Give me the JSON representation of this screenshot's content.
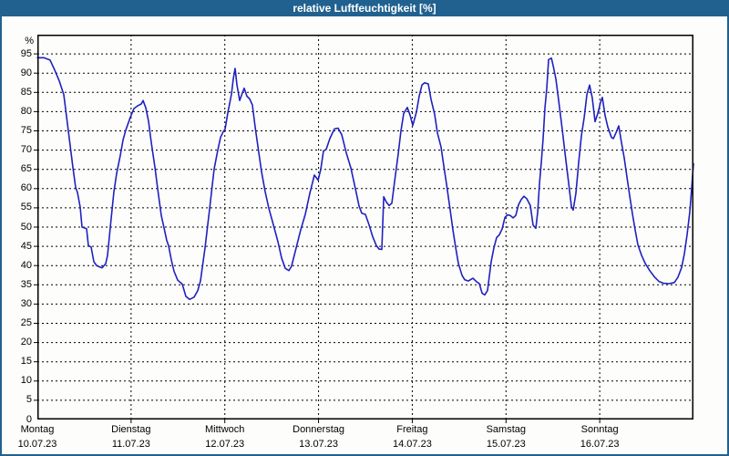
{
  "window": {
    "title": "relative Luftfeuchtigkeit [%]"
  },
  "colors": {
    "titlebar": "#20618f",
    "window_border": "#20618f",
    "background": "#fdfefb",
    "grid": "#000000",
    "line": "#2020c0",
    "title_text": "#ffffff",
    "axis_text": "#000000"
  },
  "chart_data": {
    "type": "line",
    "title": "relative Luftfeuchtigkeit [%]",
    "ylabel": "%",
    "ylim": [
      0,
      100
    ],
    "yticks": [
      0,
      5,
      10,
      15,
      20,
      25,
      30,
      35,
      40,
      45,
      50,
      55,
      60,
      65,
      70,
      75,
      80,
      85,
      90,
      95
    ],
    "xlim_days": [
      0,
      7
    ],
    "grid": "dashed",
    "legend": "none",
    "x_days": [
      {
        "name": "Montag",
        "date": "10.07.23"
      },
      {
        "name": "Dienstag",
        "date": "11.07.23"
      },
      {
        "name": "Mittwoch",
        "date": "12.07.23"
      },
      {
        "name": "Donnerstag",
        "date": "13.07.23"
      },
      {
        "name": "Freitag",
        "date": "14.07.23"
      },
      {
        "name": "Samstag",
        "date": "15.07.23"
      },
      {
        "name": "Sonntag",
        "date": "16.07.23"
      }
    ],
    "series": [
      {
        "name": "relative Luftfeuchtigkeit",
        "color": "#2020c0",
        "points": [
          [
            0,
            94
          ],
          [
            0.068,
            94
          ],
          [
            0.136,
            93.4
          ],
          [
            0.185,
            90.8
          ],
          [
            0.233,
            88
          ],
          [
            0.282,
            84.4
          ],
          [
            0.331,
            75
          ],
          [
            0.379,
            65.5
          ],
          [
            0.408,
            60.3
          ],
          [
            0.428,
            59
          ],
          [
            0.457,
            55.2
          ],
          [
            0.476,
            50
          ],
          [
            0.525,
            49.6
          ],
          [
            0.544,
            45.2
          ],
          [
            0.574,
            44.8
          ],
          [
            0.603,
            41
          ],
          [
            0.632,
            40
          ],
          [
            0.69,
            39.4
          ],
          [
            0.729,
            40.5
          ],
          [
            0.749,
            42.6
          ],
          [
            0.787,
            52
          ],
          [
            0.817,
            59.2
          ],
          [
            0.846,
            63.9
          ],
          [
            0.885,
            68.6
          ],
          [
            0.914,
            72.6
          ],
          [
            0.943,
            75.2
          ],
          [
            0.992,
            78.5
          ],
          [
            1.031,
            80.8
          ],
          [
            1.069,
            81.5
          ],
          [
            1.108,
            82
          ],
          [
            1.128,
            82.9
          ],
          [
            1.157,
            81
          ],
          [
            1.186,
            77.5
          ],
          [
            1.215,
            72
          ],
          [
            1.254,
            65.6
          ],
          [
            1.283,
            60
          ],
          [
            1.322,
            53
          ],
          [
            1.351,
            49.8
          ],
          [
            1.381,
            46.5
          ],
          [
            1.4,
            45.2
          ],
          [
            1.429,
            41.5
          ],
          [
            1.458,
            38.5
          ],
          [
            1.497,
            36.2
          ],
          [
            1.546,
            35.2
          ],
          [
            1.585,
            32
          ],
          [
            1.624,
            31.2
          ],
          [
            1.672,
            31.8
          ],
          [
            1.711,
            33.5
          ],
          [
            1.74,
            36
          ],
          [
            1.789,
            44.6
          ],
          [
            1.838,
            54.9
          ],
          [
            1.886,
            65.1
          ],
          [
            1.925,
            70
          ],
          [
            1.954,
            73.3
          ],
          [
            1.983,
            74.8
          ],
          [
            2.003,
            75.4
          ],
          [
            2.032,
            79.7
          ],
          [
            2.071,
            84.5
          ],
          [
            2.09,
            88.5
          ],
          [
            2.11,
            91.2
          ],
          [
            2.129,
            87
          ],
          [
            2.158,
            82.9
          ],
          [
            2.187,
            84.8
          ],
          [
            2.207,
            86.1
          ],
          [
            2.236,
            84
          ],
          [
            2.265,
            83.3
          ],
          [
            2.294,
            81.7
          ],
          [
            2.323,
            76.2
          ],
          [
            2.362,
            69.5
          ],
          [
            2.392,
            64.4
          ],
          [
            2.43,
            59.3
          ],
          [
            2.469,
            54.9
          ],
          [
            2.518,
            50.6
          ],
          [
            2.567,
            46.2
          ],
          [
            2.606,
            42
          ],
          [
            2.644,
            39.3
          ],
          [
            2.683,
            38.7
          ],
          [
            2.712,
            39.8
          ],
          [
            2.761,
            44.6
          ],
          [
            2.81,
            49.3
          ],
          [
            2.858,
            53.3
          ],
          [
            2.907,
            58.8
          ],
          [
            2.956,
            63.5
          ],
          [
            2.995,
            62.2
          ],
          [
            3.024,
            65
          ],
          [
            3.053,
            69.8
          ],
          [
            3.082,
            70.2
          ],
          [
            3.121,
            73
          ],
          [
            3.169,
            75.5
          ],
          [
            3.208,
            75.7
          ],
          [
            3.247,
            74
          ],
          [
            3.296,
            69.3
          ],
          [
            3.345,
            65.3
          ],
          [
            3.393,
            60
          ],
          [
            3.432,
            55.5
          ],
          [
            3.461,
            53.6
          ],
          [
            3.5,
            53.3
          ],
          [
            3.539,
            50.6
          ],
          [
            3.578,
            47.5
          ],
          [
            3.617,
            45.2
          ],
          [
            3.646,
            44.3
          ],
          [
            3.675,
            44.2
          ],
          [
            3.695,
            57.9
          ],
          [
            3.724,
            56.5
          ],
          [
            3.753,
            55.6
          ],
          [
            3.782,
            56.2
          ],
          [
            3.811,
            61.8
          ],
          [
            3.85,
            69
          ],
          [
            3.879,
            75
          ],
          [
            3.908,
            79.5
          ],
          [
            3.947,
            81.1
          ],
          [
            3.977,
            79
          ],
          [
            4.006,
            76.4
          ],
          [
            4.045,
            80
          ],
          [
            4.074,
            84
          ],
          [
            4.103,
            86.9
          ],
          [
            4.132,
            87.5
          ],
          [
            4.171,
            87.2
          ],
          [
            4.2,
            83.2
          ],
          [
            4.239,
            79.3
          ],
          [
            4.268,
            74.5
          ],
          [
            4.307,
            70.8
          ],
          [
            4.336,
            65.9
          ],
          [
            4.365,
            61.2
          ],
          [
            4.404,
            54.5
          ],
          [
            4.433,
            49.3
          ],
          [
            4.463,
            44.6
          ],
          [
            4.492,
            40.6
          ],
          [
            4.531,
            37.5
          ],
          [
            4.56,
            36.3
          ],
          [
            4.599,
            36
          ],
          [
            4.647,
            36.7
          ],
          [
            4.686,
            35.8
          ],
          [
            4.715,
            35.3
          ],
          [
            4.745,
            32.8
          ],
          [
            4.774,
            32.4
          ],
          [
            4.803,
            33.5
          ],
          [
            4.842,
            41
          ],
          [
            4.871,
            44.6
          ],
          [
            4.9,
            47.3
          ],
          [
            4.929,
            48
          ],
          [
            4.958,
            49.5
          ],
          [
            4.988,
            52.5
          ],
          [
            5.017,
            53.2
          ],
          [
            5.046,
            53
          ],
          [
            5.075,
            52.4
          ],
          [
            5.104,
            53
          ],
          [
            5.133,
            55.8
          ],
          [
            5.163,
            57.2
          ],
          [
            5.192,
            58
          ],
          [
            5.221,
            57.4
          ],
          [
            5.26,
            55.6
          ],
          [
            5.289,
            50.5
          ],
          [
            5.318,
            49.7
          ],
          [
            5.338,
            54
          ],
          [
            5.357,
            61.2
          ],
          [
            5.377,
            67
          ],
          [
            5.396,
            73
          ],
          [
            5.415,
            80.9
          ],
          [
            5.435,
            86
          ],
          [
            5.454,
            93.5
          ],
          [
            5.484,
            93.9
          ],
          [
            5.503,
            92
          ],
          [
            5.532,
            88.5
          ],
          [
            5.561,
            83
          ],
          [
            5.6,
            75.4
          ],
          [
            5.63,
            69.1
          ],
          [
            5.668,
            61.5
          ],
          [
            5.698,
            55.3
          ],
          [
            5.717,
            54.4
          ],
          [
            5.746,
            58.8
          ],
          [
            5.775,
            66.7
          ],
          [
            5.804,
            73.7
          ],
          [
            5.834,
            78.5
          ],
          [
            5.863,
            84.5
          ],
          [
            5.892,
            86.9
          ],
          [
            5.921,
            83.5
          ],
          [
            5.95,
            77.4
          ],
          [
            5.979,
            79.5
          ],
          [
            6.009,
            82.5
          ],
          [
            6.028,
            83.7
          ],
          [
            6.057,
            79
          ],
          [
            6.086,
            76
          ],
          [
            6.125,
            73.3
          ],
          [
            6.145,
            73
          ],
          [
            6.174,
            74.5
          ],
          [
            6.203,
            76.3
          ],
          [
            6.232,
            72
          ],
          [
            6.261,
            68
          ],
          [
            6.29,
            63
          ],
          [
            6.32,
            58
          ],
          [
            6.349,
            53.5
          ],
          [
            6.378,
            49.3
          ],
          [
            6.407,
            45.4
          ],
          [
            6.446,
            42.7
          ],
          [
            6.485,
            40.6
          ],
          [
            6.533,
            38.7
          ],
          [
            6.582,
            37.1
          ],
          [
            6.631,
            35.9
          ],
          [
            6.679,
            35.4
          ],
          [
            6.738,
            35.3
          ],
          [
            6.796,
            35.6
          ],
          [
            6.835,
            37
          ],
          [
            6.874,
            39.5
          ],
          [
            6.903,
            43
          ],
          [
            6.932,
            48
          ],
          [
            6.961,
            54
          ],
          [
            6.981,
            60
          ],
          [
            7,
            66.5
          ]
        ]
      }
    ]
  }
}
